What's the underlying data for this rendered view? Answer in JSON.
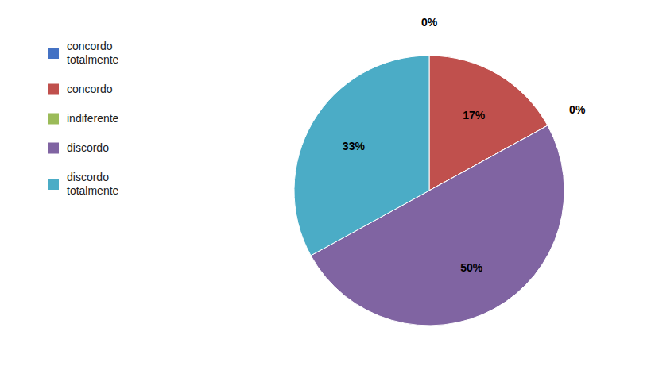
{
  "chart_data": {
    "type": "pie",
    "categories": [
      "concordo\ntotalmente",
      "concordo",
      "indiferente",
      "discordo",
      "discordo\ntotalmente"
    ],
    "values": [
      0.001,
      17,
      0.001,
      50,
      33
    ],
    "value_labels": [
      "0%",
      "17%",
      "0%",
      "50%",
      "33%"
    ],
    "colors": [
      "#4472c4",
      "#c0504d",
      "#9bbb59",
      "#8064a2",
      "#4bacc6"
    ],
    "data_labels": true,
    "legend": "upper left"
  }
}
